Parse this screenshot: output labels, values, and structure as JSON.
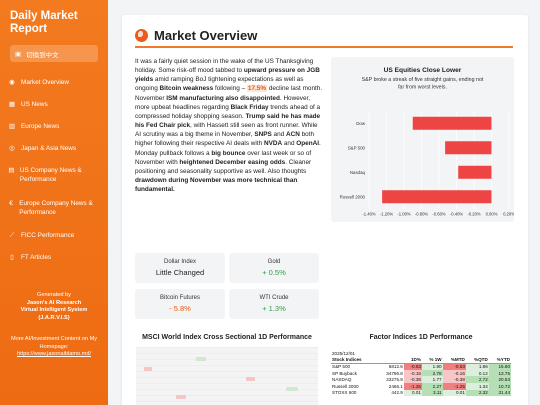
{
  "sidebar": {
    "brand": "Daily Market Report",
    "lang_label": "切換到中文",
    "items": [
      {
        "icon": "globe-icon",
        "glyph": "◉",
        "label": "Market Overview"
      },
      {
        "icon": "flag-icon",
        "glyph": "▦",
        "label": "US News"
      },
      {
        "icon": "bank-icon",
        "glyph": "▥",
        "label": "Europe News"
      },
      {
        "icon": "globe-asia-icon",
        "glyph": "◎",
        "label": "Japan & Asia News"
      },
      {
        "icon": "building-icon",
        "glyph": "▤",
        "label": "US Company News & Performance"
      },
      {
        "icon": "euro-icon",
        "glyph": "€",
        "label": "Europe Company News & Performance"
      },
      {
        "icon": "chart-line-icon",
        "glyph": "⟋",
        "label": "FICC Performance"
      },
      {
        "icon": "file-icon",
        "glyph": "▯",
        "label": "FT Articles"
      }
    ],
    "footer": {
      "generated_by": "Generated by",
      "org": "Jason's AI Research",
      "assistant": "Virtual Intelligent System",
      "acronym": "(J.A.R.V.I.S)",
      "more_text": "More AI/Investment Content on My Homepage:",
      "link": "https://www.jasonaiblamo.md/"
    }
  },
  "main": {
    "title": "Market Overview",
    "article": {
      "t1": "It was a fairly quiet session in the wake of the US Thanksgiving holiday. Some risk-off mood tabbed to ",
      "b1": "upward pressure on JGB yields",
      "t2": " amid ramping BoJ tightening expectations as well as ongoing ",
      "b2": "Bitcoin weakness",
      "t3": " following – ",
      "hl": "17.5%",
      "t4": " decline last month. November ",
      "b3": "ISM manufacturing also disappointed",
      "t5": ". However, more upbeat headlines regarding ",
      "b4": "Black Friday",
      "t6": " trends ahead of a compressed holiday shopping season. ",
      "b5": "Trump said he has made his Fed Chair pick",
      "t7": ", with Hassett still seen as front runner. While AI scrutiny was a big theme in November, ",
      "b6": "SNPS",
      "t8": " and ",
      "b7": "ACN",
      "t9": " both higher following their respective AI deals with ",
      "b8": "NVDA",
      "t10": " and ",
      "b9": "OpenAI",
      "t11": ". Monday pullback follows a ",
      "b10": "big bounce",
      "t12": " over last week or so of November with ",
      "b11": "heightened December easing odds",
      "t13": ". Cleaner positioning and seasonality supportive as well. Also thoughts ",
      "b12": "drawdown during November was more technical than fundamental."
    },
    "stats": [
      {
        "label": "Dollar Index",
        "value": "Little Changed",
        "tone": "neu"
      },
      {
        "label": "Gold",
        "value": "+ 0.5%",
        "tone": "pos"
      },
      {
        "label": "Bitcoin Futures",
        "value": "- 5.8%",
        "tone": "neg"
      },
      {
        "label": "WTI Crude",
        "value": "+ 1.3%",
        "tone": "pos"
      }
    ],
    "sections": {
      "heatmap_title": "MSCI World Index Cross Sectional 1D Performance",
      "factor_title": "Factor Indices 1D Performance"
    },
    "factor_table": {
      "date": "2025/12/01",
      "headers": [
        "Stock Indices",
        "1D%",
        "% 1W",
        "%MTD",
        "%QTD",
        "%YTD"
      ],
      "rows": [
        [
          "S&P 500",
          "6812.6",
          "-0.53",
          "1.90",
          "-0.53",
          "1.86",
          "15.80"
        ],
        [
          "SP Buyback",
          "34796.8",
          "-0.16",
          "2.78",
          "-0.16",
          "0.12",
          "13.75"
        ],
        [
          "NASDAQ",
          "23275.9",
          "-0.38",
          "1.77",
          "-0.38",
          "2.72",
          "20.53"
        ],
        [
          "Russell 2000",
          "2466.1",
          "-1.25",
          "2.27",
          "-1.25",
          "1.34",
          "10.72"
        ],
        [
          "STOXX 600",
          "442.9",
          "0.01",
          "3.11",
          "0.01",
          "2.32",
          "31.44"
        ]
      ]
    }
  },
  "chart_data": {
    "type": "bar",
    "orientation": "horizontal",
    "title": "US Equities Close Lower",
    "subtitle": "S&P broke a streak of five straight gains, ending not far from worst levels.",
    "categories": [
      "Dow",
      "S&P 500",
      "Nasdaq",
      "Russell 2000"
    ],
    "values": [
      -0.9,
      -0.53,
      -0.38,
      -1.25
    ],
    "xlim": [
      -1.4,
      0.2
    ],
    "xticks": [
      "-1.40%",
      "-1.20%",
      "-1.00%",
      "-0.80%",
      "-0.60%",
      "-0.40%",
      "-0.20%",
      "0.00%",
      "0.20%"
    ],
    "bar_color": "#ef4444",
    "grid": true
  }
}
